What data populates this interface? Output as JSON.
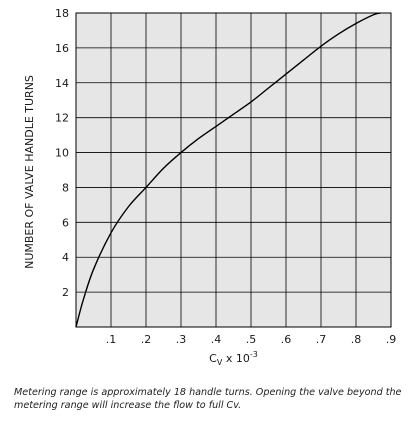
{
  "chart_data": {
    "type": "line",
    "title": "",
    "xlabel": "C",
    "xlabel_sub": "V",
    "xlabel_suffix": " x 10",
    "xlabel_sup": "-3",
    "ylabel": "NUMBER OF VALVE HANDLE TURNS",
    "xlim": [
      0,
      0.9
    ],
    "ylim": [
      0,
      18
    ],
    "x_ticks": [
      0.1,
      0.2,
      0.3,
      0.4,
      0.5,
      0.6,
      0.7,
      0.8,
      0.9
    ],
    "x_tick_labels": [
      ".1",
      ".2",
      ".3",
      ".4",
      ".5",
      ".6",
      ".7",
      ".8",
      ".9"
    ],
    "y_ticks": [
      2,
      4,
      6,
      8,
      10,
      12,
      14,
      16,
      18
    ],
    "y_tick_labels": [
      "2",
      "4",
      "6",
      "8",
      "10",
      "12",
      "14",
      "16",
      "18"
    ],
    "grid": true,
    "background_color": "#e6e6e6",
    "line_color": "#000000",
    "series": [
      {
        "x": [
          0,
          0.02,
          0.05,
          0.1,
          0.15,
          0.2,
          0.25,
          0.3,
          0.35,
          0.4,
          0.45,
          0.5,
          0.55,
          0.6,
          0.65,
          0.7,
          0.75,
          0.8,
          0.85,
          0.87
        ],
        "y": [
          0,
          1.5,
          3.3,
          5.4,
          6.9,
          8.0,
          9.1,
          10.0,
          10.8,
          11.5,
          12.2,
          12.9,
          13.7,
          14.5,
          15.3,
          16.1,
          16.8,
          17.4,
          17.9,
          18.0
        ]
      }
    ]
  },
  "caption": "Metering range is approximately 18 handle turns. Opening the valve beyond the metering range will increase the flow to full Cv."
}
